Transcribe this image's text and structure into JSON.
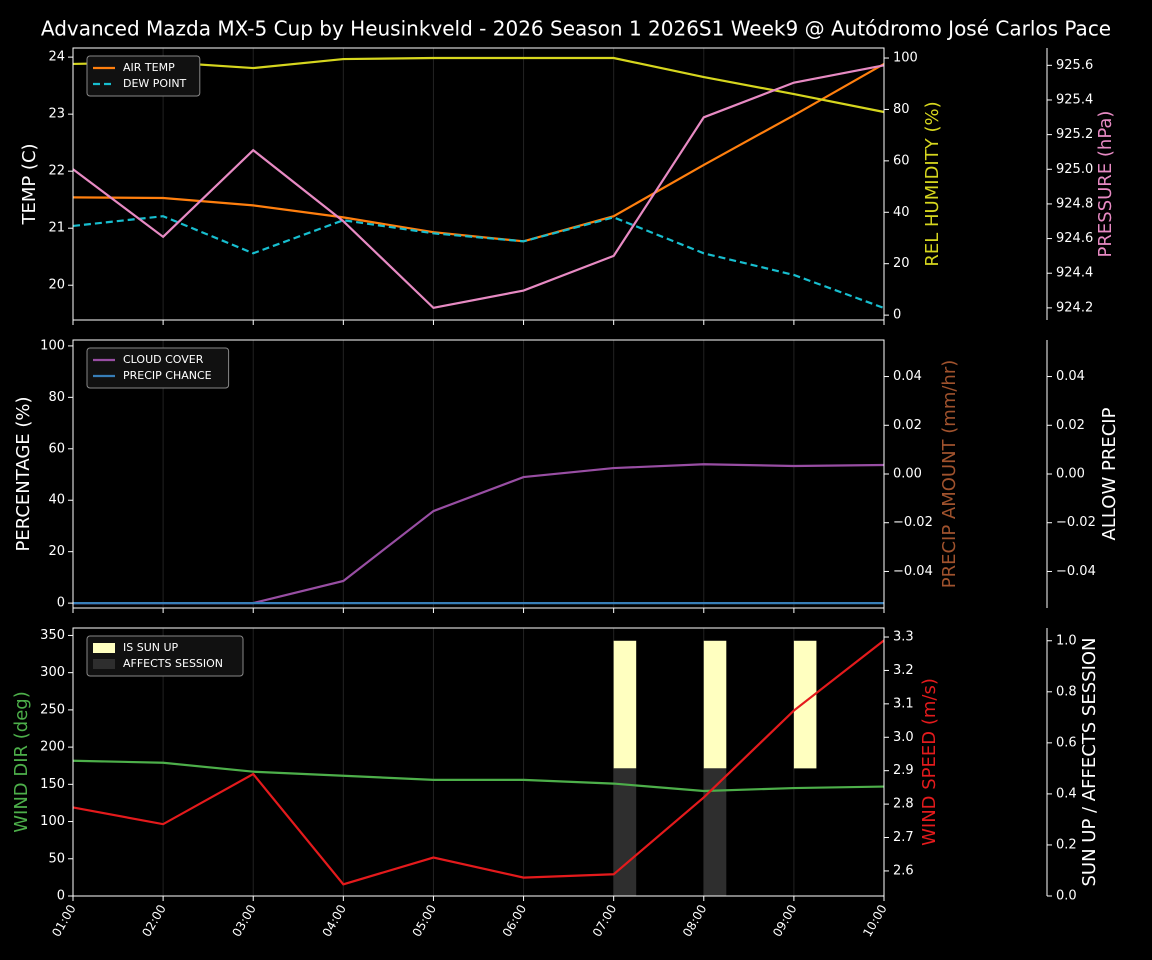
{
  "chart_data": [
    {
      "type": "line",
      "title": "Advanced Mazda MX-5 Cup by Heusinkveld - 2026 Season 1 2026S1 Week9 @ Autódromo José Carlos Pace",
      "ylabel": "TEMP (C)",
      "ylabel_color": "#ffffff",
      "ylim": [
        19.39,
        24.16
      ],
      "yticks": [
        20,
        21,
        22,
        23,
        24
      ],
      "y2label": "REL HUMIDITY (%)",
      "y2label_color": "#d6d61e",
      "y2lim": [
        -1.9,
        103.9
      ],
      "y2ticks": [
        0,
        20,
        40,
        60,
        80,
        100
      ],
      "y3label": "PRESSURE (hPa)",
      "y3label_color": "#e78ac3",
      "y3lim": [
        924.13,
        925.7
      ],
      "y3ticks": [
        924.2,
        924.4,
        924.6,
        924.8,
        {
          "value": 925.0,
          "label": "925.0"
        },
        925.2,
        925.4,
        925.6
      ],
      "legend": "upper left",
      "xgrid": true,
      "series": [
        {
          "name": "AIR TEMP",
          "color": "#ff7f0e",
          "values": [
            21.54,
            21.53,
            21.4,
            21.19,
            20.93,
            20.77,
            21.21,
            22.11,
            22.98,
            23.88
          ]
        },
        {
          "name": "DEW POINT",
          "color": "#17becf",
          "dash": true,
          "values": [
            21.04,
            21.21,
            20.56,
            21.14,
            20.91,
            20.77,
            21.19,
            20.56,
            20.18,
            19.6
          ]
        },
        {
          "color": "#d6d61e",
          "axis": "y2",
          "values": [
            97.7,
            98.4,
            96.1,
            99.6,
            100,
            100,
            100,
            92.6,
            86,
            79
          ]
        },
        {
          "color": "#e78ac3",
          "axis": "y3",
          "values": [
            925.0,
            924.61,
            925.11,
            924.7,
            924.2,
            924.3,
            924.5,
            925.3,
            925.5,
            925.6
          ]
        }
      ]
    },
    {
      "type": "line",
      "ylabel": "PERCENTAGE (%)",
      "ylabel_color": "#ffffff",
      "ylim": [
        -1.9,
        102.3
      ],
      "yticks": [
        0,
        20,
        40,
        60,
        80,
        100
      ],
      "y2label": "PRECIP AMOUNT (mm/hr)",
      "y2label_color": "#a0522d",
      "y2lim": [
        -0.055,
        0.055
      ],
      "y2ticks": [
        {
          "value": -0.04,
          "label": "−0.04"
        },
        {
          "value": -0.02,
          "label": "−0.02"
        },
        {
          "value": 0,
          "label": "0.00"
        },
        0.02,
        0.04
      ],
      "y3label": "ALLOW PRECIP",
      "y3label_color": "#ffffff",
      "y3lim": [
        -0.055,
        0.055
      ],
      "y3ticks": [
        {
          "value": -0.04,
          "label": "−0.04"
        },
        {
          "value": -0.02,
          "label": "−0.02"
        },
        {
          "value": 0,
          "label": "0.00"
        },
        0.02,
        0.04
      ],
      "legend": "upper left",
      "xgrid": true,
      "series": [
        {
          "name": "CLOUD COVER",
          "color": "#984ea3",
          "values": [
            0,
            0,
            0,
            8.6,
            35.8,
            49,
            52.5,
            54,
            53.3,
            53.7
          ]
        },
        {
          "name": "PRECIP CHANCE",
          "color": "#377eb8",
          "values": [
            0,
            0,
            0,
            0,
            0,
            0,
            0,
            0,
            0,
            0
          ]
        }
      ]
    },
    {
      "type": "line",
      "categories": [
        "01:00",
        "02:00",
        "03:00",
        "04:00",
        "05:00",
        "06:00",
        "07:00",
        "08:00",
        "09:00",
        "10:00"
      ],
      "ylabel": "WIND DIR (deg)",
      "ylabel_color": "#4daf4a",
      "ylim": [
        0,
        360
      ],
      "yticks": [
        0,
        50,
        100,
        150,
        200,
        250,
        300,
        350
      ],
      "y2label": "WIND SPEED (m/s)",
      "y2label_color": "#e41a1c",
      "y2lim": [
        2.525,
        3.327
      ],
      "y2ticks": [
        2.6,
        2.7,
        2.8,
        2.9,
        {
          "value": 3.0,
          "label": "3.0"
        },
        3.1,
        3.2,
        3.3
      ],
      "y3label": "SUN UP / AFFECTS SESSION",
      "y3label_color": "#ffffff",
      "y3lim": [
        0,
        1.05
      ],
      "y3ticks": [
        {
          "value": 0,
          "label": "0.0"
        },
        0.2,
        0.4,
        0.6,
        0.8,
        {
          "value": 1,
          "label": "1.0"
        }
      ],
      "legend": "upper left",
      "xgrid": true,
      "series": [
        {
          "name": "IS SUN UP",
          "kind": "bar",
          "color": "#ffffc0",
          "axis": "y3",
          "bottom": 0.5,
          "values": [
            0,
            0,
            0,
            0,
            0,
            0,
            0.5,
            0.5,
            0.5,
            0
          ]
        },
        {
          "name": "AFFECTS SESSION",
          "kind": "bar",
          "color": "#2e2e2e",
          "axis": "y3",
          "values": [
            0,
            0,
            0,
            0,
            0,
            0,
            0.5,
            0.5,
            0,
            0
          ]
        },
        {
          "color": "#4daf4a",
          "values": [
            181.7,
            179,
            167,
            161.5,
            156,
            156,
            151,
            141,
            145,
            147
          ]
        },
        {
          "color": "#e41a1c",
          "axis": "y2",
          "values": [
            2.79,
            2.74,
            2.89,
            2.56,
            2.64,
            2.58,
            2.59,
            2.82,
            3.08,
            3.29
          ]
        }
      ]
    }
  ]
}
